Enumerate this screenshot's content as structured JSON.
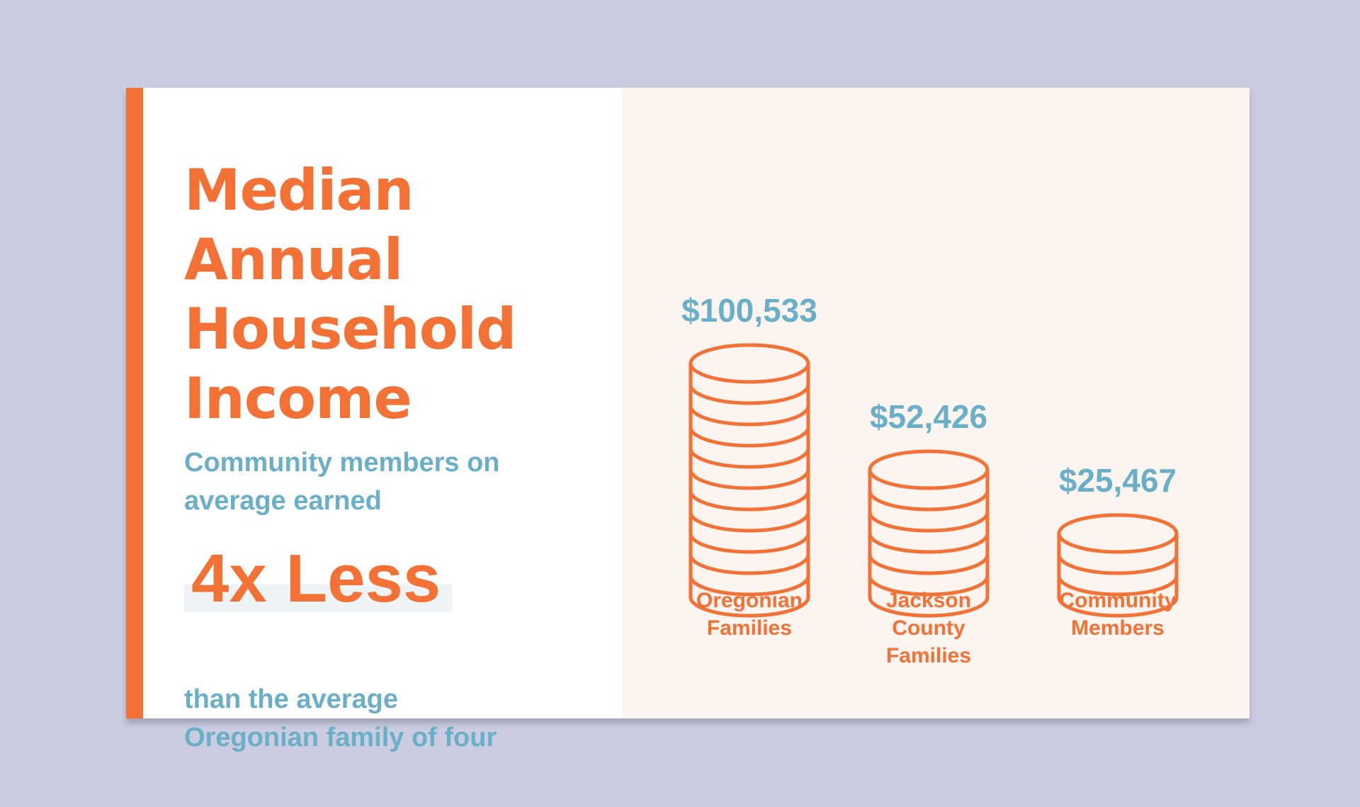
{
  "colors": {
    "background": "#cbcce0",
    "card": "#ffffff",
    "right_panel": "#fcf4ef",
    "accent": "#f47136",
    "teal": "#6aafc8",
    "highlight": "#eef4f6"
  },
  "title": {
    "lines": [
      "Median",
      "Annual",
      "Household",
      "Income"
    ]
  },
  "subtitle": {
    "lines_top": [
      "Community members on",
      "average earned"
    ],
    "highlight": "4x Less",
    "lines_bottom": [
      "than the average",
      "Oregonian family of four"
    ]
  },
  "chart_data": {
    "type": "bar",
    "title": "Median Annual Household Income",
    "categories": [
      [
        "Oregonian",
        "Families"
      ],
      [
        "Jackson",
        "County",
        "Families"
      ],
      [
        "Community",
        "Members"
      ]
    ],
    "values": [
      100533,
      52426,
      25467
    ],
    "value_labels": [
      "$100,533",
      "$52,426",
      "$25,467"
    ],
    "coin_counts": [
      11,
      6,
      3
    ],
    "mark": "coin-stack",
    "colors": {
      "values": "#6aafc8",
      "categories": "#f47136",
      "coins": "#f47136"
    },
    "grid": false,
    "legend": "none"
  }
}
